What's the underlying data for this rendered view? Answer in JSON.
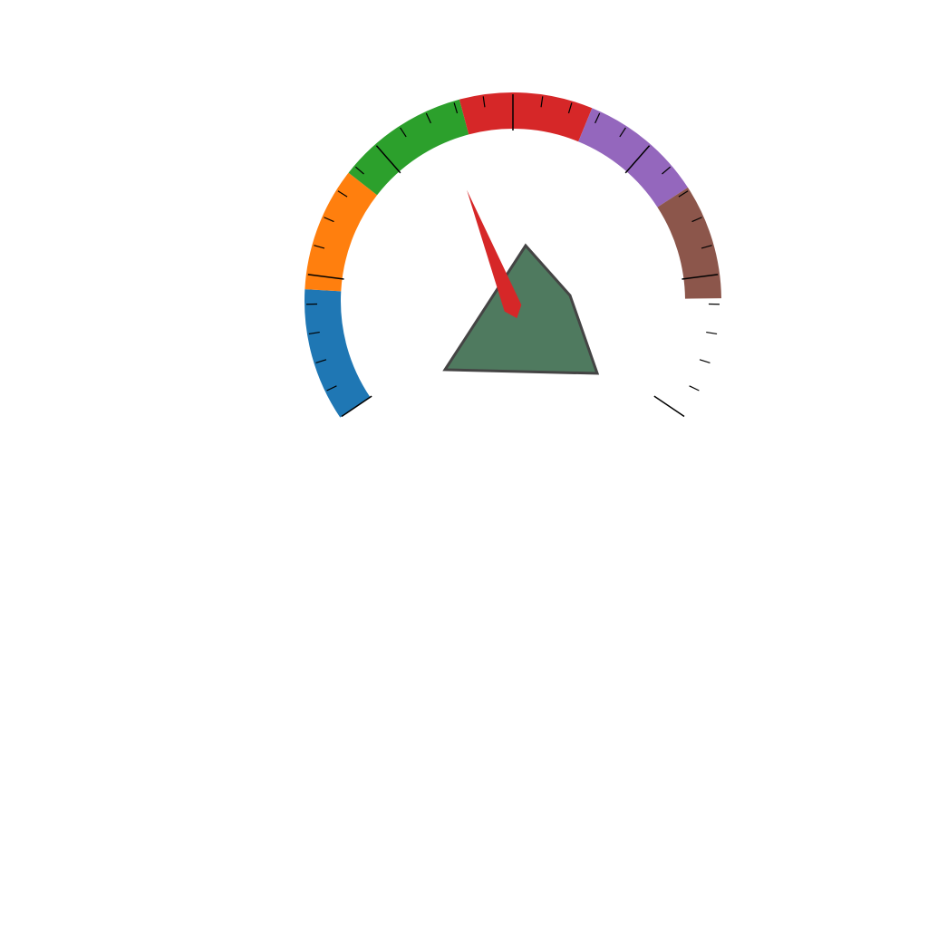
{
  "chart_data": {
    "type": "gauge",
    "title": "",
    "range": [
      0,
      1
    ],
    "start_angle_deg": 214,
    "end_angle_deg": -34,
    "needle_value": 0.414,
    "bands": [
      {
        "name": "",
        "from": 0.0,
        "to": 0.15,
        "color": "#1f77b4"
      },
      {
        "name": "",
        "from": 0.15,
        "to": 0.29,
        "color": "#ff7f0e"
      },
      {
        "name": "",
        "from": 0.29,
        "to": 0.44,
        "color": "#2ca02c"
      },
      {
        "name": "",
        "from": 0.44,
        "to": 0.59,
        "color": "#d62728"
      },
      {
        "name": "",
        "from": 0.59,
        "to": 0.73,
        "color": "#9467bd"
      },
      {
        "name": "",
        "from": 0.73,
        "to": 0.86,
        "color": "#8c564b"
      }
    ],
    "major_tick_count": 6,
    "minor_ticks_per_major": 4,
    "needle_color": "#d62728",
    "hub_shape_color": "#4f7a5f",
    "hub_shape_stroke": "#444444"
  }
}
